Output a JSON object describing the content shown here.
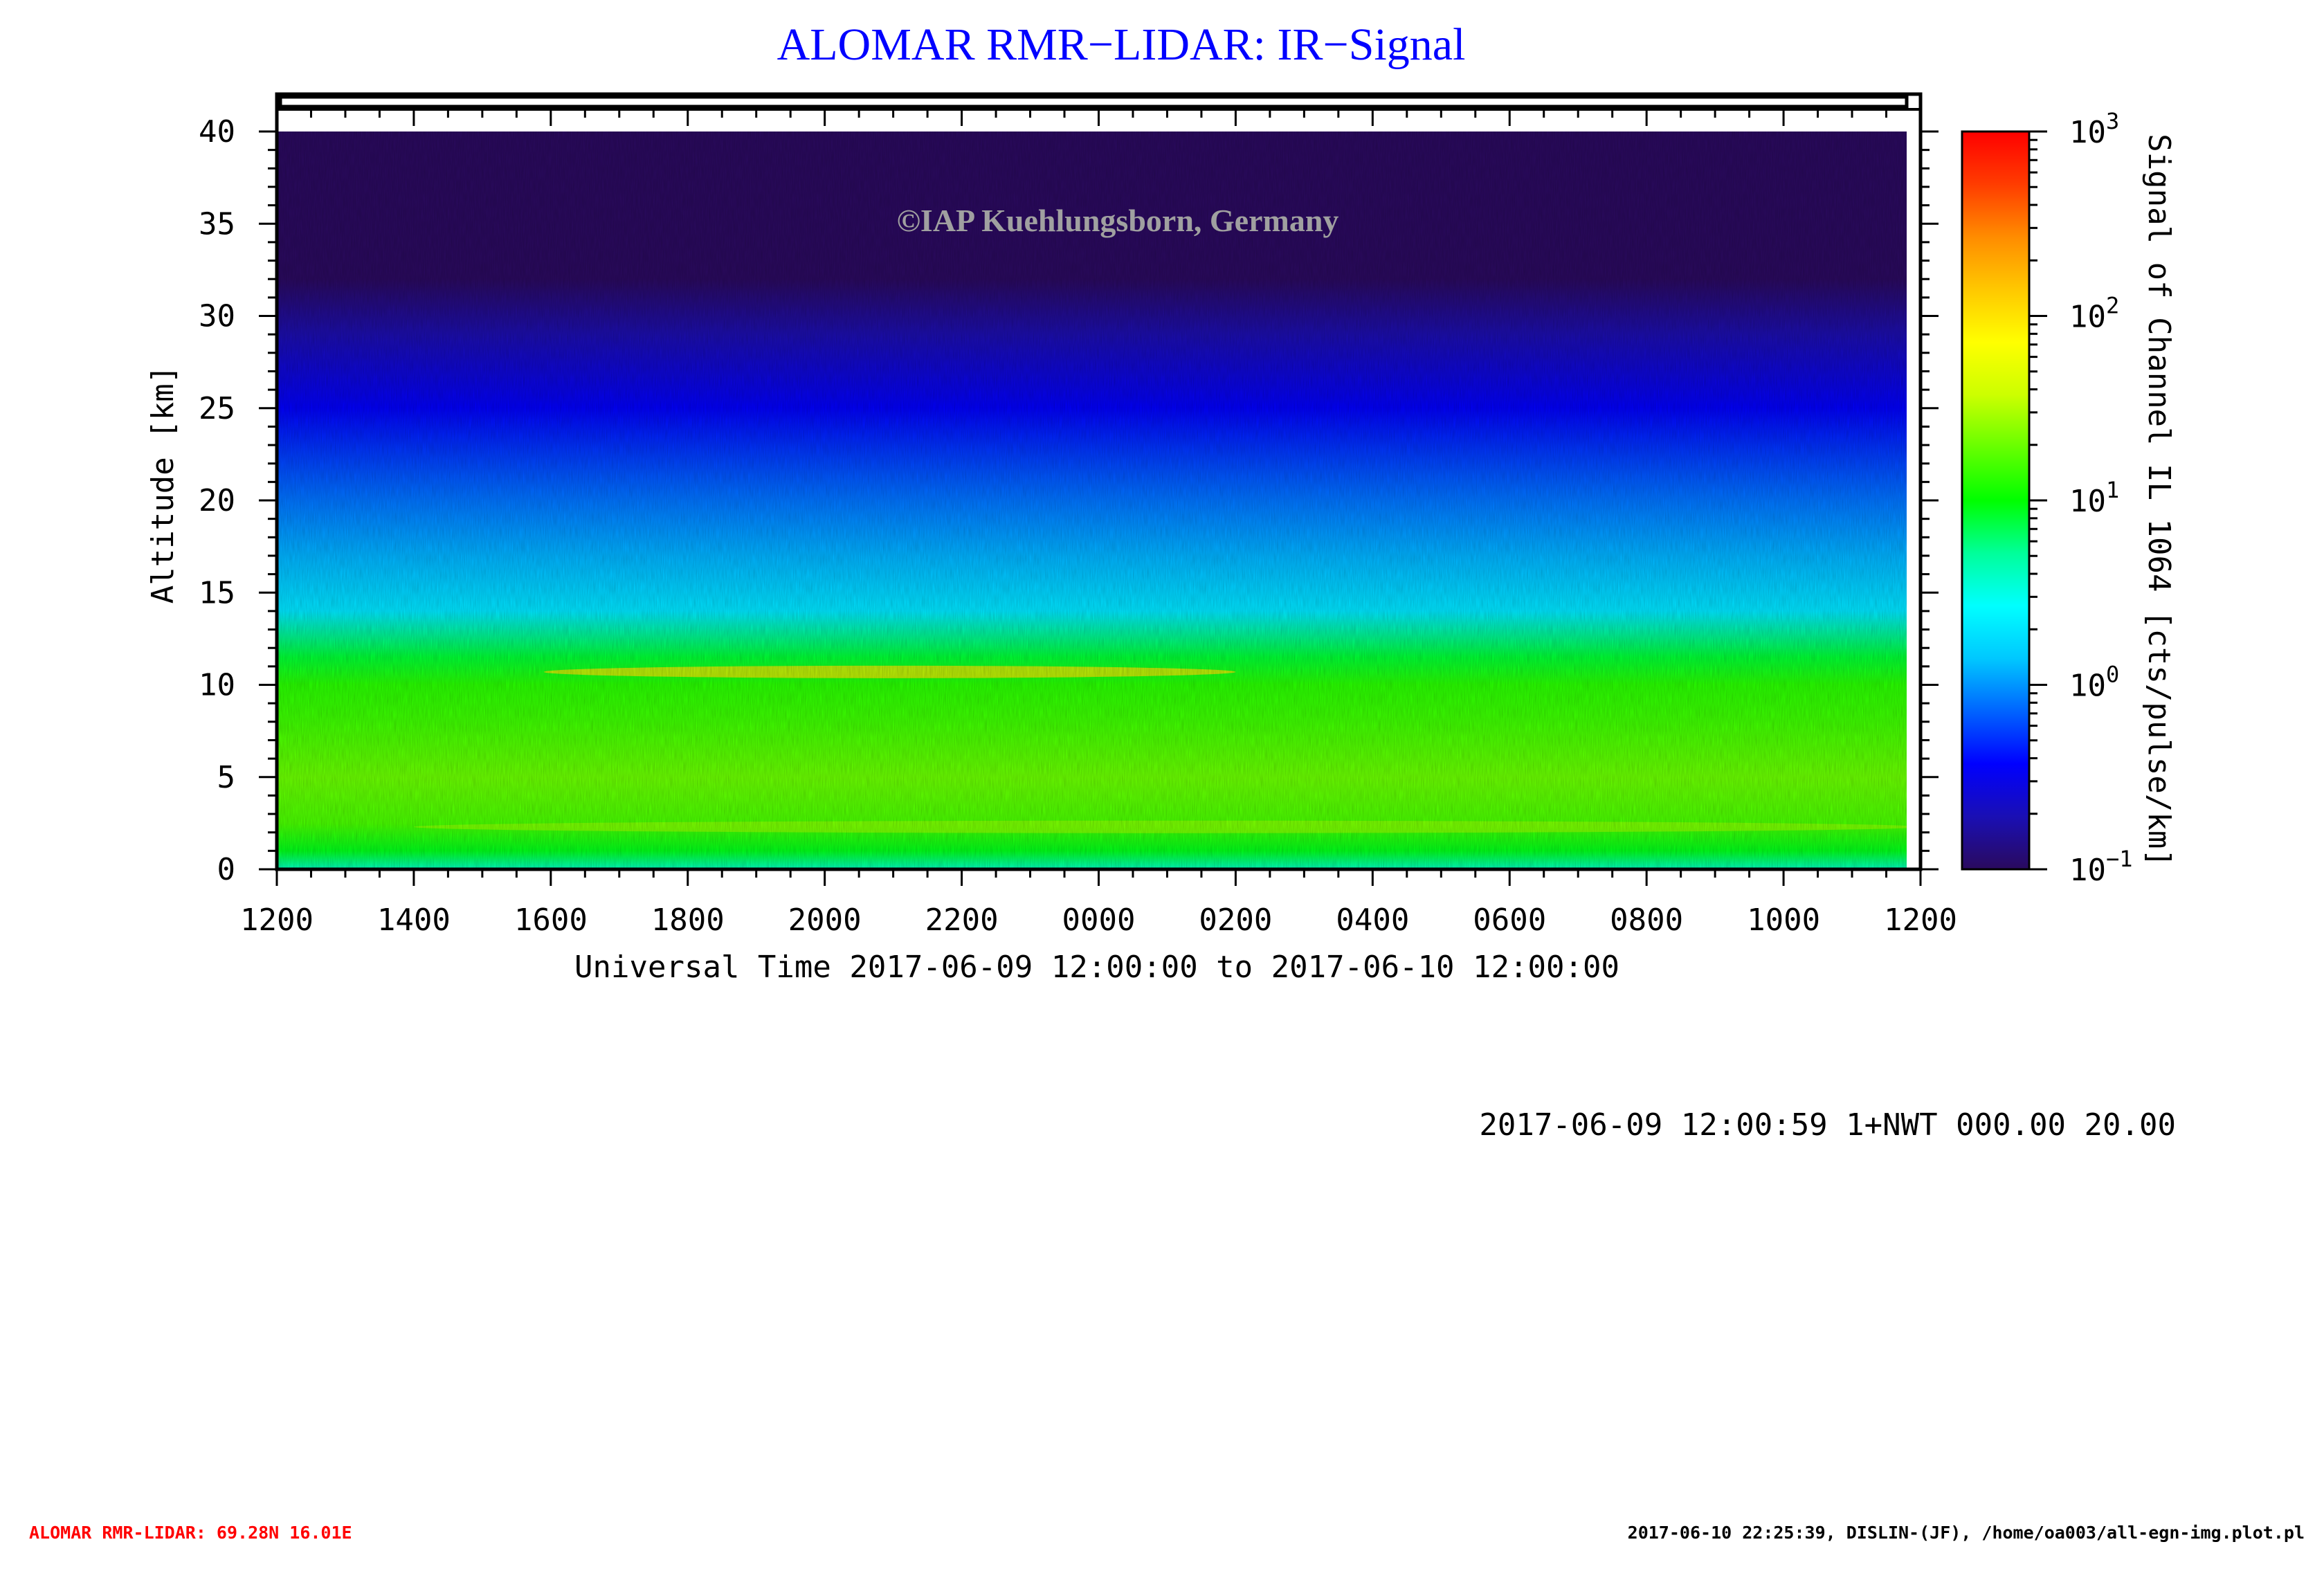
{
  "chart_data": {
    "type": "heatmap",
    "title": "ALOMAR RMR−LIDAR: IR−Signal",
    "watermark": "©IAP Kuehlungsborn, Germany",
    "xlabel": "Universal Time 2017-06-09 12:00:00 to 2017-06-10 12:00:00",
    "ylabel": "Altitude [km]",
    "colorbar_label": "Signal of Channel IL 1064 [cts/pulse/km]",
    "x_tick_labels": [
      "1200",
      "1400",
      "1600",
      "1800",
      "2000",
      "2200",
      "0000",
      "0200",
      "0400",
      "0600",
      "0800",
      "1000",
      "1200"
    ],
    "x_range_hours": [
      0,
      24
    ],
    "y_ticks": [
      0,
      5,
      10,
      15,
      20,
      25,
      30,
      35,
      40
    ],
    "ylim": [
      0,
      40
    ],
    "colorbar_ticks": [
      {
        "base": "10",
        "exp": "3",
        "value": 1000
      },
      {
        "base": "10",
        "exp": "2",
        "value": 100
      },
      {
        "base": "10",
        "exp": "1",
        "value": 10
      },
      {
        "base": "10",
        "exp": "0",
        "value": 1
      },
      {
        "base": "10",
        "exp": "−1",
        "value": 0.1
      }
    ],
    "colorbar_scale": "log",
    "colorbar_range": [
      0.1,
      1000
    ],
    "colormap_stops": [
      "#2a0a5e",
      "#1a0fb4",
      "#0000ff",
      "#0064ff",
      "#00c8ff",
      "#00ffff",
      "#00ff9a",
      "#00ff00",
      "#66ff00",
      "#ccff00",
      "#ffff00",
      "#ffc800",
      "#ff8c00",
      "#ff3c00",
      "#ff0000"
    ],
    "altitude_profile": [
      {
        "alt": 0.0,
        "signal": 4.0
      },
      {
        "alt": 1.0,
        "signal": 9.0
      },
      {
        "alt": 2.5,
        "signal": 16.0
      },
      {
        "alt": 5.0,
        "signal": 20.0
      },
      {
        "alt": 8.0,
        "signal": 15.0
      },
      {
        "alt": 10.0,
        "signal": 13.0
      },
      {
        "alt": 11.5,
        "signal": 8.0
      },
      {
        "alt": 14.0,
        "signal": 2.0
      },
      {
        "alt": 17.0,
        "signal": 1.2
      },
      {
        "alt": 20.0,
        "signal": 0.8
      },
      {
        "alt": 25.0,
        "signal": 0.35
      },
      {
        "alt": 29.0,
        "signal": 0.18
      },
      {
        "alt": 32.0,
        "signal": 0.1
      },
      {
        "alt": 40.0,
        "signal": 0.1
      }
    ],
    "features": [
      {
        "name": "cirrus-layer",
        "alt_km": 10.7,
        "time_start_h": 3.9,
        "time_end_h": 14.0,
        "signal": 100
      },
      {
        "name": "boundary-layer",
        "alt_km": 2.3,
        "time_start_h": 2.0,
        "time_end_h": 24.0,
        "signal": 25
      }
    ]
  },
  "stamp": "2017-06-09 12:00:59 1+NWT 000.00 20.00",
  "footer_left": "ALOMAR RMR-LIDAR: 69.28N 16.01E",
  "footer_right": "2017-06-10 22:25:39, DISLIN-(JF), /home/oa003/all-egn-img.plot.pl",
  "colors": {
    "title": "#0000ff",
    "footer_left": "#ff0000",
    "watermark": "#a0a0a0"
  }
}
